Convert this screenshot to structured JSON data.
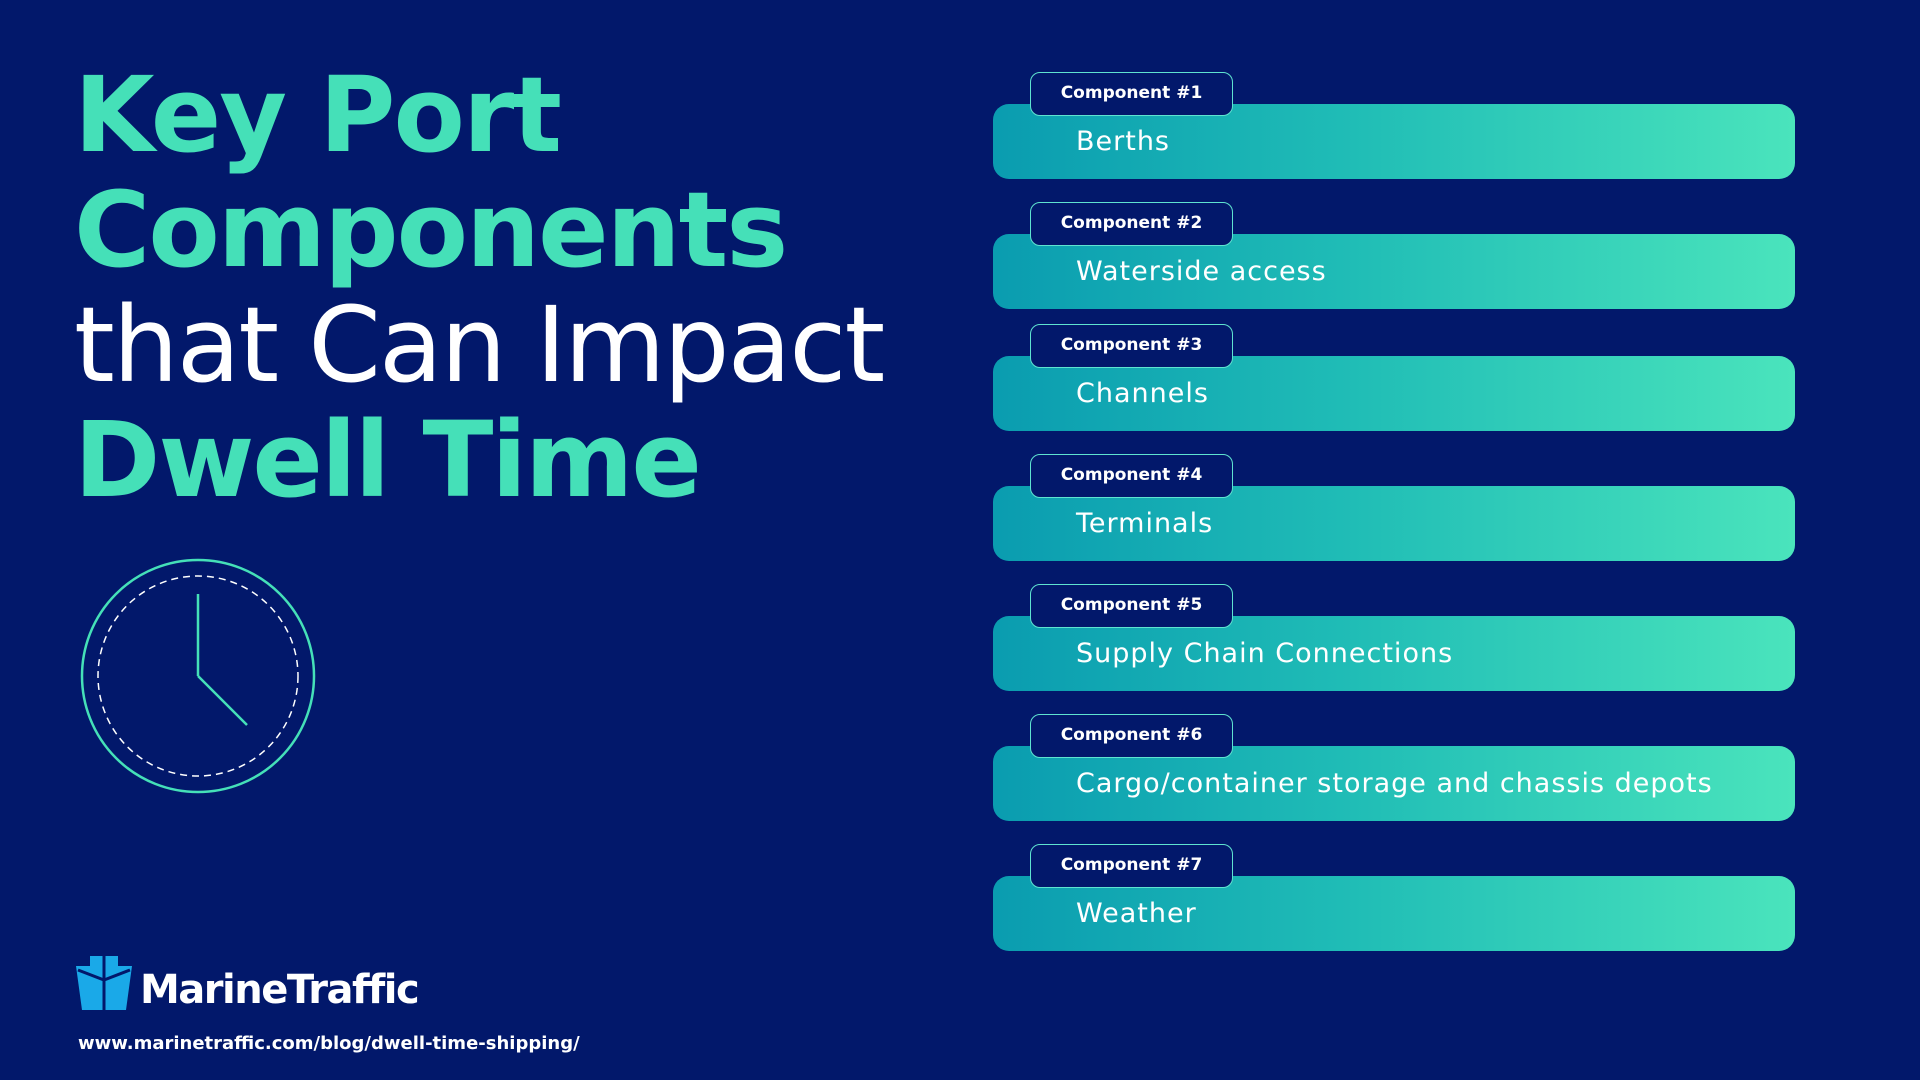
{
  "header": {
    "title": [
      "Key Port",
      "Components",
      "that Can Impact",
      "Dwell Time"
    ]
  },
  "components": [
    {
      "badge": "Component #1",
      "label": "Berths"
    },
    {
      "badge": "Component #2",
      "label": "Waterside access"
    },
    {
      "badge": "Component #3",
      "label": "Channels"
    },
    {
      "badge": "Component #4",
      "label": "Terminals"
    },
    {
      "badge": "Component #5",
      "label": "Supply Chain Connections"
    },
    {
      "badge": "Component #6",
      "label": "Cargo/container storage and chassis depots"
    },
    {
      "badge": "Component #7",
      "label": "Weather"
    }
  ],
  "footer": {
    "brand": "MarineTraffic",
    "url": "www.marinetraffic.com/blog/dwell-time-shipping/"
  }
}
